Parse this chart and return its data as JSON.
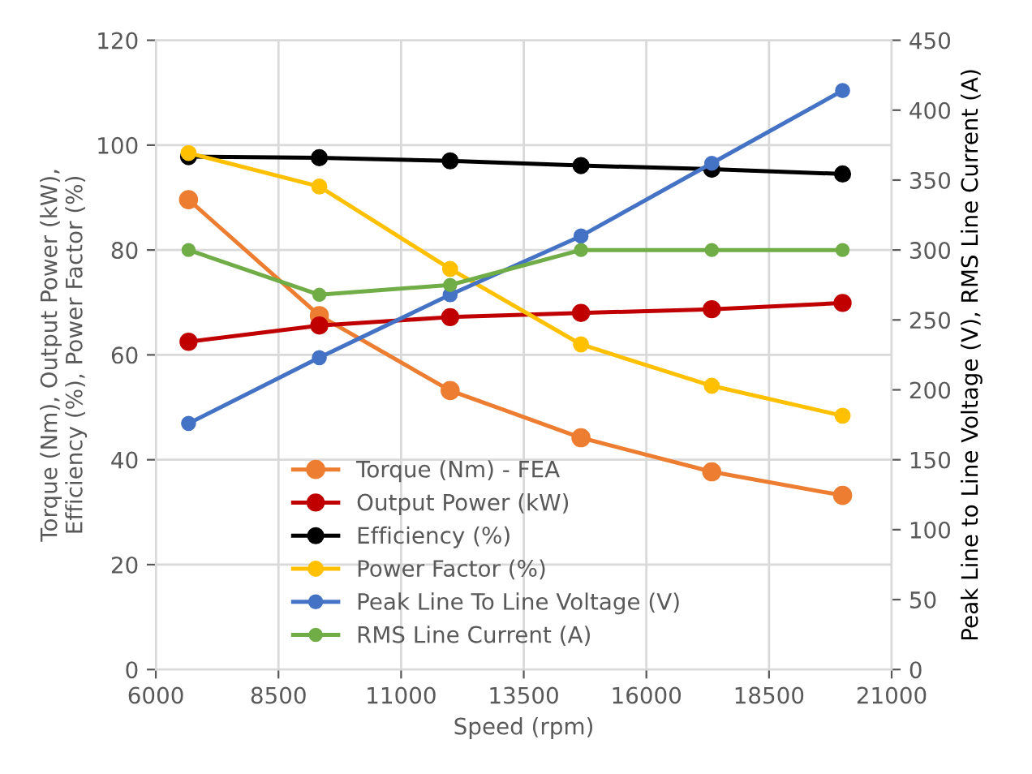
{
  "chart_data": {
    "type": "line",
    "xlabel": "Speed (rpm)",
    "ylabel": "Torque (Nm), Output Power (kW),\nEfficiency (%), Power Factor (%)",
    "y2label": "Peak Line to Line Voltage (V), RMS Line Current (A)",
    "x": [
      6667,
      9333,
      12000,
      14667,
      17333,
      20000
    ],
    "xlim": [
      6000,
      21000
    ],
    "xticks": [
      6000,
      8500,
      11000,
      13500,
      16000,
      18500,
      21000
    ],
    "ylim": [
      0,
      120
    ],
    "yticks": [
      0,
      20,
      40,
      60,
      80,
      100,
      120
    ],
    "y2lim": [
      0,
      450
    ],
    "y2ticks": [
      0,
      50,
      100,
      150,
      200,
      250,
      300,
      350,
      400,
      450
    ],
    "grid": true,
    "legend": "bottom",
    "marker": "circle",
    "line_style": "solid",
    "series": [
      {
        "name": "Torque (Nm) - FEA",
        "color": "#ed7d31",
        "values": [
          89.6,
          67.5,
          53.2,
          44.2,
          37.7,
          33.2
        ]
      },
      {
        "name": "Output Power (kW)",
        "color": "#c00000",
        "values": [
          62.5,
          65.6,
          67.2,
          68.0,
          68.7,
          69.9
        ]
      },
      {
        "name": "Efficiency (%)",
        "color": "#000000",
        "values": [
          97.8,
          97.6,
          97.0,
          96.1,
          95.4,
          94.5
        ]
      },
      {
        "name": "Power Factor (%)",
        "color": "#ffc000",
        "values": [
          98.5,
          92.1,
          76.4,
          62.0,
          54.1,
          48.4
        ]
      },
      {
        "name": "Peak Line To Line Voltage (V)",
        "color": "#4472c4",
        "axis": "y2",
        "values": [
          176,
          223,
          268,
          310,
          362,
          414
        ]
      },
      {
        "name": "RMS Line Current (A)",
        "color": "#70ad47",
        "axis": "y2",
        "values": [
          300,
          268,
          275,
          300,
          300,
          300
        ]
      }
    ]
  }
}
